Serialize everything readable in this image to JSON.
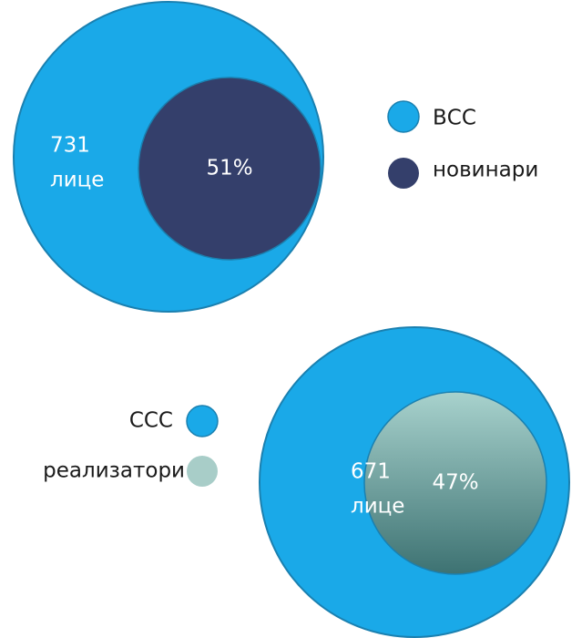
{
  "diagrams": [
    {
      "count": "731",
      "unit": "лице",
      "share": "51%",
      "legend": [
        "ВСС",
        "новинари"
      ]
    },
    {
      "count": "671",
      "unit": "лице",
      "share": "47%",
      "legend": [
        "ССС",
        "реализатори"
      ]
    }
  ]
}
